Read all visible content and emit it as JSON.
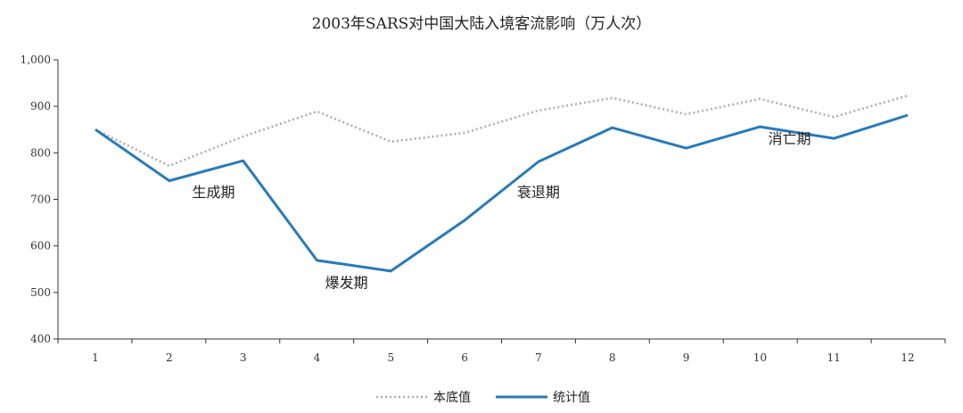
{
  "chart_data": {
    "type": "line",
    "title": "2003年SARS对中国大陆入境客流影响（万人次）",
    "x": [
      1,
      2,
      3,
      4,
      5,
      6,
      7,
      8,
      9,
      10,
      11,
      12
    ],
    "xlabel": "",
    "ylabel": "",
    "ylim": [
      400,
      1000
    ],
    "yticks": [
      "400",
      "500",
      "600",
      "700",
      "800",
      "900",
      "1,000"
    ],
    "grid": false,
    "legend_position": "bottom",
    "series": [
      {
        "name": "本底值",
        "style": "dotted",
        "color": "#b0aab0",
        "values": [
          850,
          772,
          835,
          889,
          824,
          843,
          891,
          918,
          883,
          916,
          877,
          923
        ]
      },
      {
        "name": "统计值",
        "style": "solid",
        "color": "#2a7ab8",
        "values": [
          850,
          740,
          783,
          569,
          546,
          655,
          781,
          854,
          810,
          856,
          831,
          881
        ]
      }
    ],
    "annotations": [
      {
        "text": "生成期",
        "x": 2.6,
        "y": 705
      },
      {
        "text": "爆发期",
        "x": 4.4,
        "y": 510
      },
      {
        "text": "衰退期",
        "x": 7.0,
        "y": 705
      },
      {
        "text": "消亡期",
        "x": 10.4,
        "y": 820
      }
    ]
  }
}
